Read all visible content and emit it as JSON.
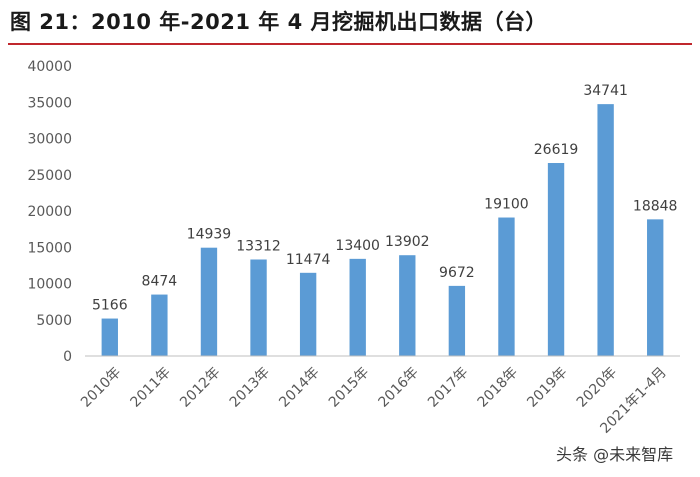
{
  "figure": {
    "title": "图 21：2010 年-2021 年 4 月挖掘机出口数据（台）",
    "watermark": "头条 @未来智库"
  },
  "chart_data": {
    "type": "bar",
    "title": "图 21：2010 年-2021 年 4 月挖掘机出口数据（台）",
    "xlabel": "",
    "ylabel": "",
    "categories": [
      "2010年",
      "2011年",
      "2012年",
      "2013年",
      "2014年",
      "2015年",
      "2016年",
      "2017年",
      "2018年",
      "2019年",
      "2020年",
      "2021年1-4月"
    ],
    "values": [
      5166,
      8474,
      14939,
      13312,
      11474,
      13400,
      13902,
      9672,
      19100,
      26619,
      34741,
      18848
    ],
    "ylim": [
      0,
      40000
    ],
    "yticks": [
      0,
      5000,
      10000,
      15000,
      20000,
      25000,
      30000,
      35000,
      40000
    ],
    "grid": false,
    "legend": "none",
    "data_labels": true,
    "bar_color": "#5b9bd5"
  }
}
